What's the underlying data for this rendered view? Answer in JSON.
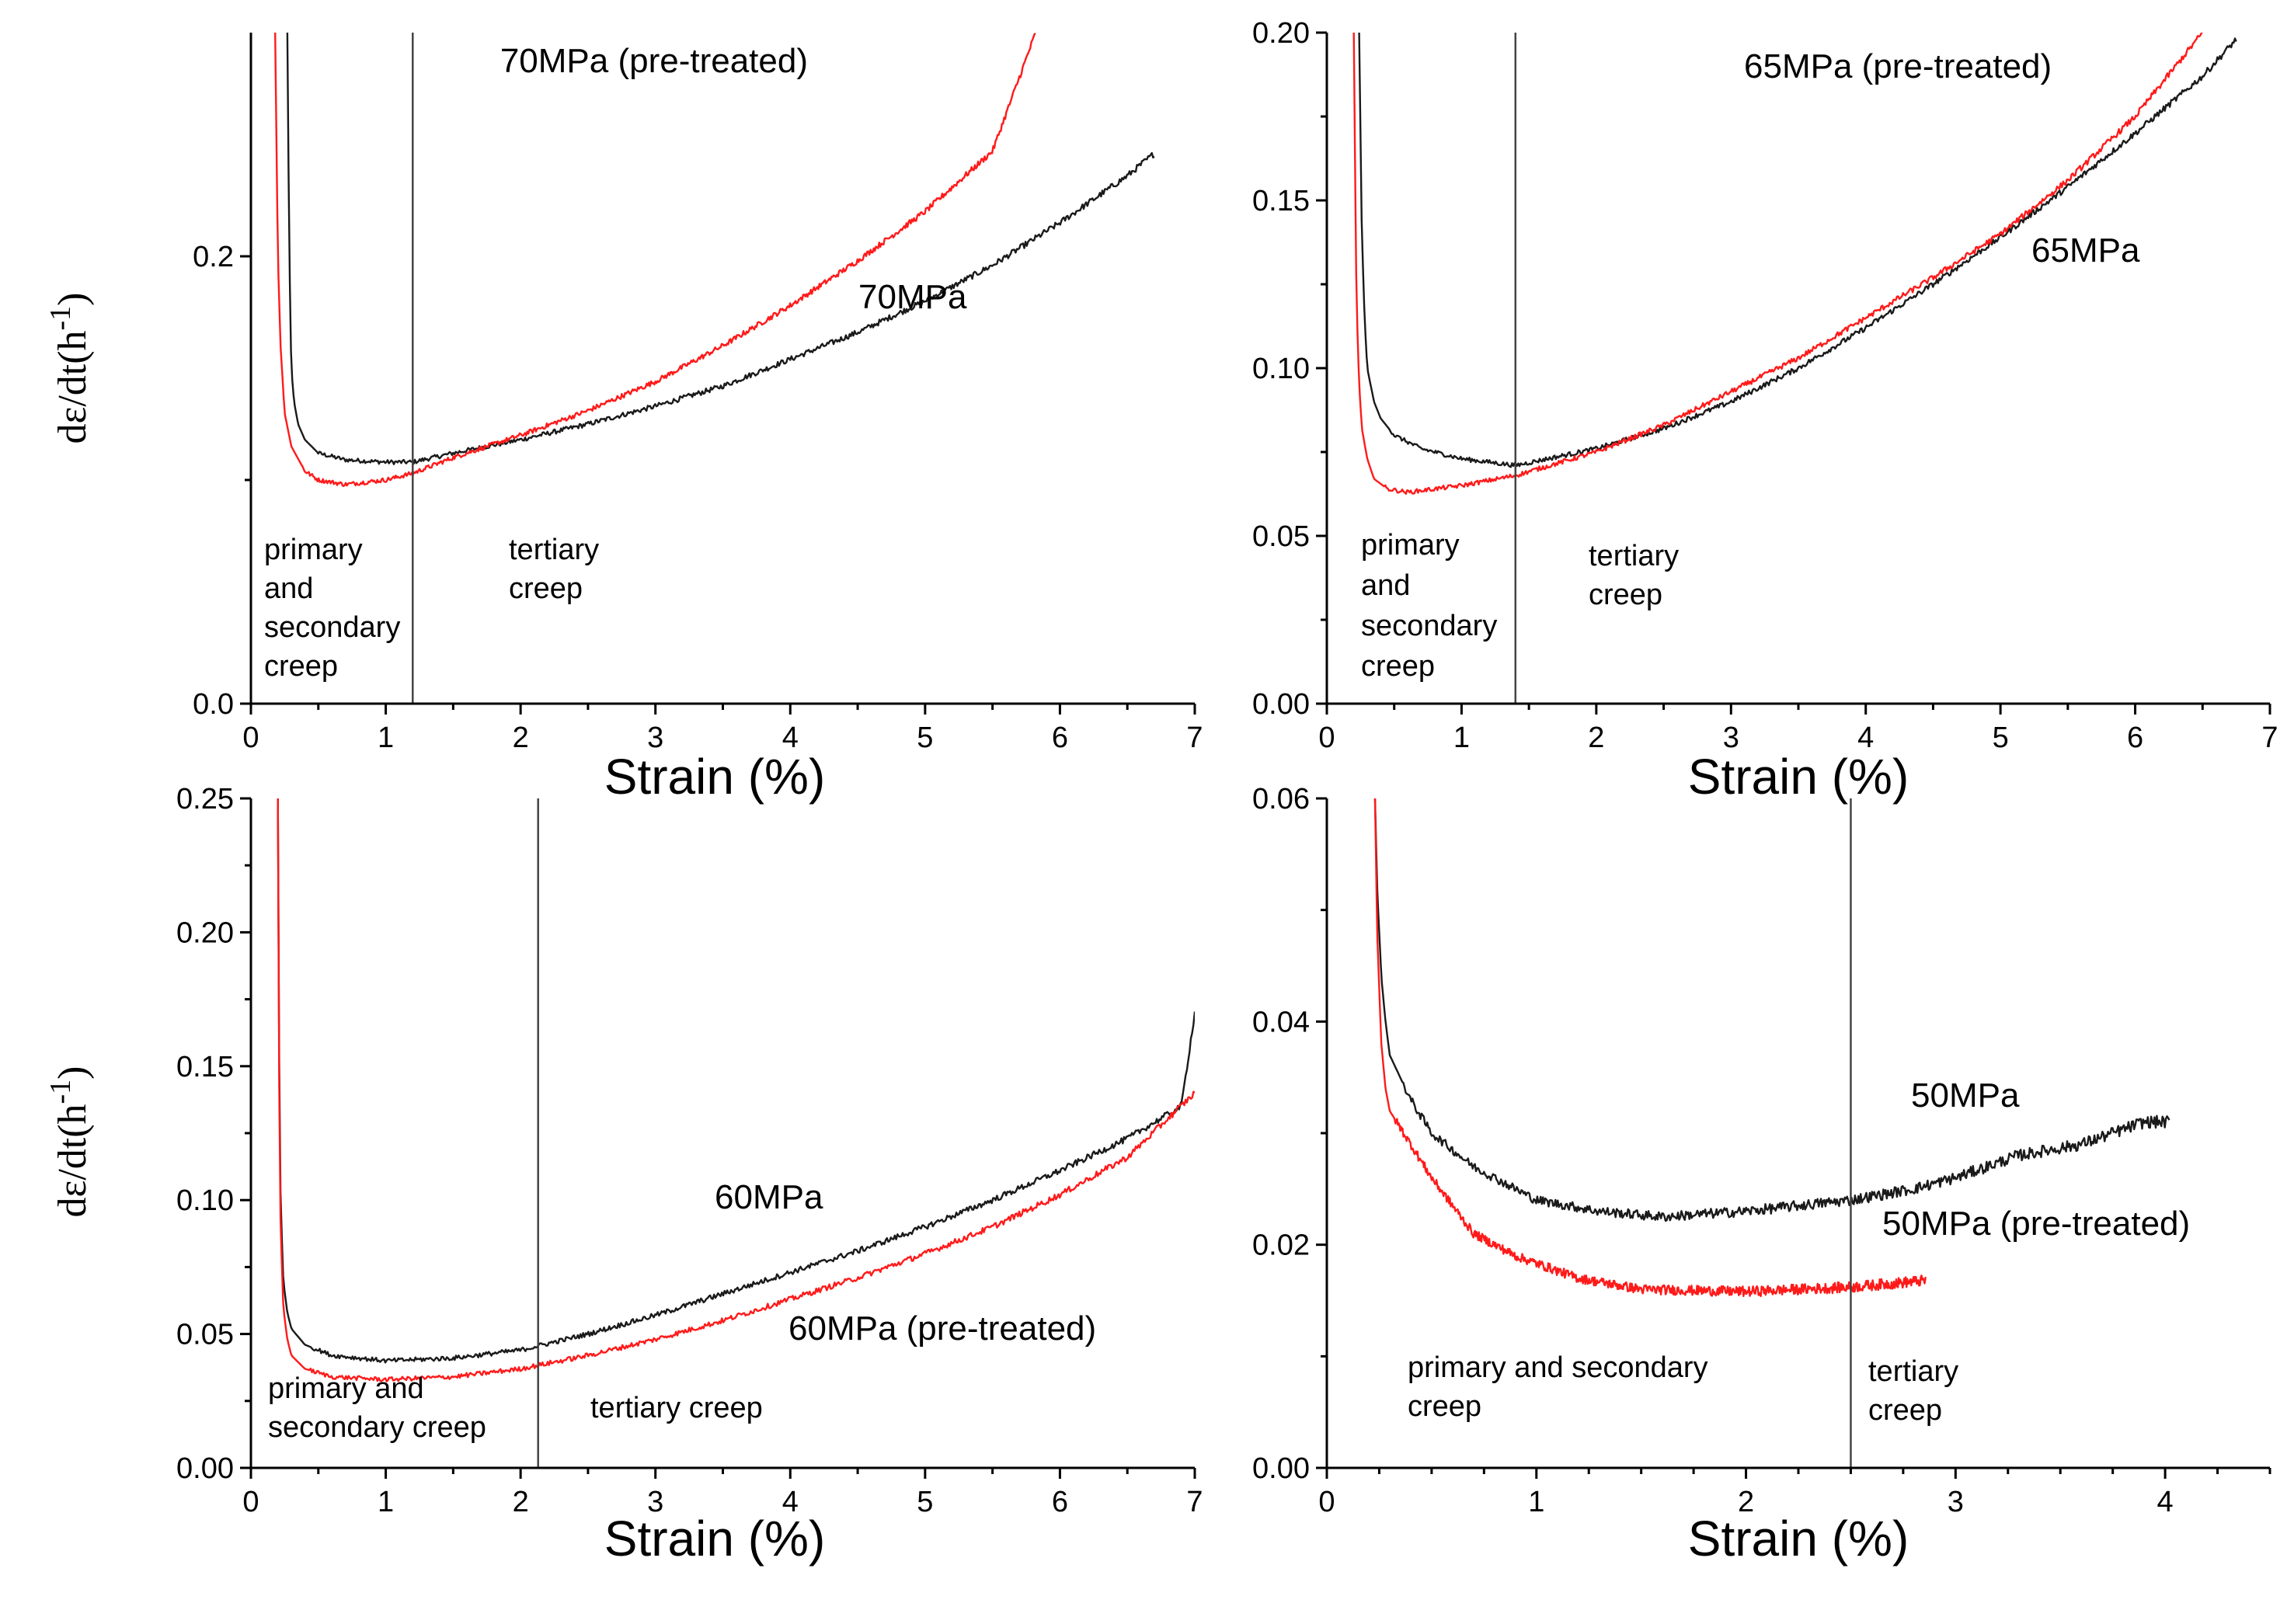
{
  "colors": {
    "series_black": "#1a1a1a",
    "series_red": "#ff1a1a",
    "divider_line": "#444444"
  },
  "chart_data": [
    {
      "type": "line",
      "id": "panel-70mpa",
      "xlabel": "Strain (%)",
      "ylabel": "dε/dt(h-1)",
      "xlim": [
        0,
        7
      ],
      "ylim": [
        0,
        0.3
      ],
      "x_ticks": [
        0,
        1,
        2,
        3,
        4,
        5,
        6,
        7
      ],
      "x_tick_labels": [
        "0",
        "1",
        "2",
        "3",
        "4",
        "5",
        "6",
        "7"
      ],
      "y_ticks": [
        0.0,
        0.2
      ],
      "y_tick_labels": [
        "0.0",
        "0.2"
      ],
      "divider_x": 1.2,
      "series": [
        {
          "name": "70MPa",
          "color": "#1a1a1a",
          "x": [
            0.27,
            0.28,
            0.29,
            0.3,
            0.32,
            0.35,
            0.4,
            0.5,
            0.7,
            1.0,
            1.2,
            1.5,
            2.0,
            2.5,
            3.0,
            3.5,
            4.0,
            4.5,
            5.0,
            5.5,
            6.0,
            6.5,
            6.7
          ],
          "y": [
            0.3,
            0.23,
            0.18,
            0.15,
            0.135,
            0.125,
            0.118,
            0.112,
            0.109,
            0.108,
            0.108,
            0.112,
            0.118,
            0.125,
            0.133,
            0.142,
            0.154,
            0.166,
            0.18,
            0.196,
            0.215,
            0.236,
            0.246
          ]
        },
        {
          "name": "70MPa (pre-treated)",
          "color": "#ff1a1a",
          "x": [
            0.18,
            0.19,
            0.2,
            0.22,
            0.25,
            0.3,
            0.4,
            0.5,
            0.7,
            1.0,
            1.2,
            1.5,
            2.0,
            2.5,
            3.0,
            3.5,
            4.0,
            4.5,
            5.0,
            5.5,
            5.82
          ],
          "y": [
            0.3,
            0.25,
            0.2,
            0.16,
            0.13,
            0.115,
            0.104,
            0.1,
            0.098,
            0.1,
            0.103,
            0.11,
            0.12,
            0.131,
            0.144,
            0.16,
            0.178,
            0.198,
            0.22,
            0.247,
            0.3
          ]
        }
      ],
      "series_labels": [
        "70MPa (pre-treated)",
        "70MPa"
      ],
      "annotations": {
        "left": [
          "primary",
          "and",
          "secondary",
          "creep"
        ],
        "right": [
          "tertiary",
          "creep"
        ]
      }
    },
    {
      "type": "line",
      "id": "panel-65mpa",
      "xlabel": "Strain (%)",
      "ylabel": "",
      "xlim": [
        0,
        7
      ],
      "ylim": [
        0,
        0.2
      ],
      "x_ticks": [
        0,
        1,
        2,
        3,
        4,
        5,
        6,
        7
      ],
      "x_tick_labels": [
        "0",
        "1",
        "2",
        "3",
        "4",
        "5",
        "6",
        "7"
      ],
      "y_ticks": [
        0.0,
        0.05,
        0.1,
        0.15,
        0.2
      ],
      "y_tick_labels": [
        "0.00",
        "0.05",
        "0.10",
        "0.15",
        "0.20"
      ],
      "divider_x": 1.4,
      "series": [
        {
          "name": "65MPa",
          "color": "#1a1a1a",
          "x": [
            0.24,
            0.25,
            0.26,
            0.28,
            0.3,
            0.35,
            0.4,
            0.5,
            0.7,
            1.0,
            1.4,
            2.0,
            2.5,
            3.0,
            3.5,
            4.0,
            4.5,
            5.0,
            5.5,
            6.0,
            6.5,
            6.75
          ],
          "y": [
            0.2,
            0.17,
            0.14,
            0.115,
            0.1,
            0.09,
            0.085,
            0.08,
            0.076,
            0.073,
            0.071,
            0.076,
            0.082,
            0.09,
            0.1,
            0.112,
            0.125,
            0.139,
            0.154,
            0.17,
            0.187,
            0.198
          ]
        },
        {
          "name": "65MPa (pre-treated)",
          "color": "#ff1a1a",
          "x": [
            0.2,
            0.21,
            0.22,
            0.24,
            0.26,
            0.3,
            0.35,
            0.45,
            0.6,
            1.0,
            1.4,
            2.0,
            2.5,
            3.0,
            3.5,
            4.0,
            4.5,
            5.0,
            5.5,
            6.0,
            6.3,
            6.5
          ],
          "y": [
            0.2,
            0.16,
            0.12,
            0.095,
            0.082,
            0.073,
            0.067,
            0.064,
            0.063,
            0.065,
            0.068,
            0.075,
            0.083,
            0.093,
            0.103,
            0.115,
            0.127,
            0.14,
            0.156,
            0.175,
            0.19,
            0.2
          ]
        }
      ],
      "series_labels": [
        "65MPa (pre-treated)",
        "65MPa"
      ],
      "annotations": {
        "left": [
          "primary",
          "and",
          "secondary",
          "creep"
        ],
        "right": [
          "tertiary",
          "creep"
        ]
      }
    },
    {
      "type": "line",
      "id": "panel-60mpa",
      "xlabel": "Strain (%)",
      "ylabel": "dε/dt(h-1)",
      "xlim": [
        0,
        7
      ],
      "ylim": [
        0,
        0.25
      ],
      "x_ticks": [
        0,
        1,
        2,
        3,
        4,
        5,
        6,
        7
      ],
      "x_tick_labels": [
        "0",
        "1",
        "2",
        "3",
        "4",
        "5",
        "6",
        "7"
      ],
      "y_ticks": [
        0.0,
        0.05,
        0.1,
        0.15,
        0.2,
        0.25
      ],
      "y_tick_labels": [
        "0.00",
        "0.05",
        "0.10",
        "0.15",
        "0.20",
        "0.25"
      ],
      "divider_x": 2.13,
      "series": [
        {
          "name": "60MPa",
          "color": "#1a1a1a",
          "x": [
            0.2,
            0.21,
            0.22,
            0.24,
            0.27,
            0.3,
            0.4,
            0.6,
            1.0,
            1.5,
            2.0,
            2.5,
            3.0,
            3.5,
            4.0,
            4.5,
            5.0,
            5.5,
            6.0,
            6.5,
            6.9,
            7.0
          ],
          "y": [
            0.25,
            0.15,
            0.1,
            0.07,
            0.058,
            0.052,
            0.046,
            0.042,
            0.04,
            0.041,
            0.044,
            0.05,
            0.057,
            0.065,
            0.073,
            0.081,
            0.09,
            0.1,
            0.111,
            0.123,
            0.135,
            0.17
          ]
        },
        {
          "name": "60MPa (pre-treated)",
          "color": "#ff1a1a",
          "x": [
            0.2,
            0.21,
            0.22,
            0.24,
            0.27,
            0.3,
            0.4,
            0.6,
            1.0,
            1.5,
            2.0,
            2.5,
            3.0,
            3.5,
            4.0,
            4.5,
            5.0,
            5.5,
            6.0,
            6.5,
            7.0
          ],
          "y": [
            0.25,
            0.14,
            0.09,
            0.06,
            0.048,
            0.042,
            0.037,
            0.034,
            0.033,
            0.034,
            0.037,
            0.042,
            0.048,
            0.055,
            0.063,
            0.071,
            0.08,
            0.09,
            0.102,
            0.116,
            0.14
          ]
        }
      ],
      "series_labels": [
        "60MPa",
        "60MPa (pre-treated)"
      ],
      "annotations": {
        "left": [
          "primary and",
          "secondary creep"
        ],
        "right": [
          "tertiary creep"
        ]
      }
    },
    {
      "type": "line",
      "id": "panel-50mpa",
      "xlabel": "Strain (%)",
      "ylabel": "",
      "xlim": [
        0,
        4.5
      ],
      "ylim": [
        0,
        0.06
      ],
      "x_ticks": [
        0,
        1,
        2,
        3,
        4
      ],
      "x_tick_labels": [
        "0",
        "1",
        "2",
        "3",
        "4"
      ],
      "y_ticks": [
        0.0,
        0.02,
        0.04,
        0.06
      ],
      "y_tick_labels": [
        "0.00",
        "0.02",
        "0.04",
        "0.06"
      ],
      "divider_x": 2.5,
      "series": [
        {
          "name": "50MPa",
          "color": "#1a1a1a",
          "x": [
            0.23,
            0.24,
            0.26,
            0.28,
            0.3,
            0.4,
            0.5,
            0.7,
            1.0,
            1.3,
            1.6,
            2.0,
            2.5,
            2.8,
            3.0,
            3.3,
            3.6,
            3.9,
            4.02
          ],
          "y": [
            0.06,
            0.052,
            0.044,
            0.04,
            0.037,
            0.033,
            0.03,
            0.027,
            0.024,
            0.023,
            0.0225,
            0.023,
            0.024,
            0.025,
            0.026,
            0.028,
            0.029,
            0.031,
            0.031
          ]
        },
        {
          "name": "50MPa (pre-treated)",
          "color": "#ff1a1a",
          "x": [
            0.23,
            0.24,
            0.26,
            0.28,
            0.3,
            0.4,
            0.5,
            0.7,
            0.9,
            1.2,
            1.5,
            2.0,
            2.5,
            2.86
          ],
          "y": [
            0.06,
            0.048,
            0.038,
            0.034,
            0.032,
            0.029,
            0.026,
            0.021,
            0.019,
            0.017,
            0.016,
            0.0158,
            0.0162,
            0.0168
          ]
        }
      ],
      "series_labels": [
        "50MPa",
        "50MPa (pre-treated)"
      ],
      "annotations": {
        "left": [
          "primary and secondary",
          "creep"
        ],
        "right": [
          "tertiary",
          "creep"
        ]
      }
    }
  ]
}
